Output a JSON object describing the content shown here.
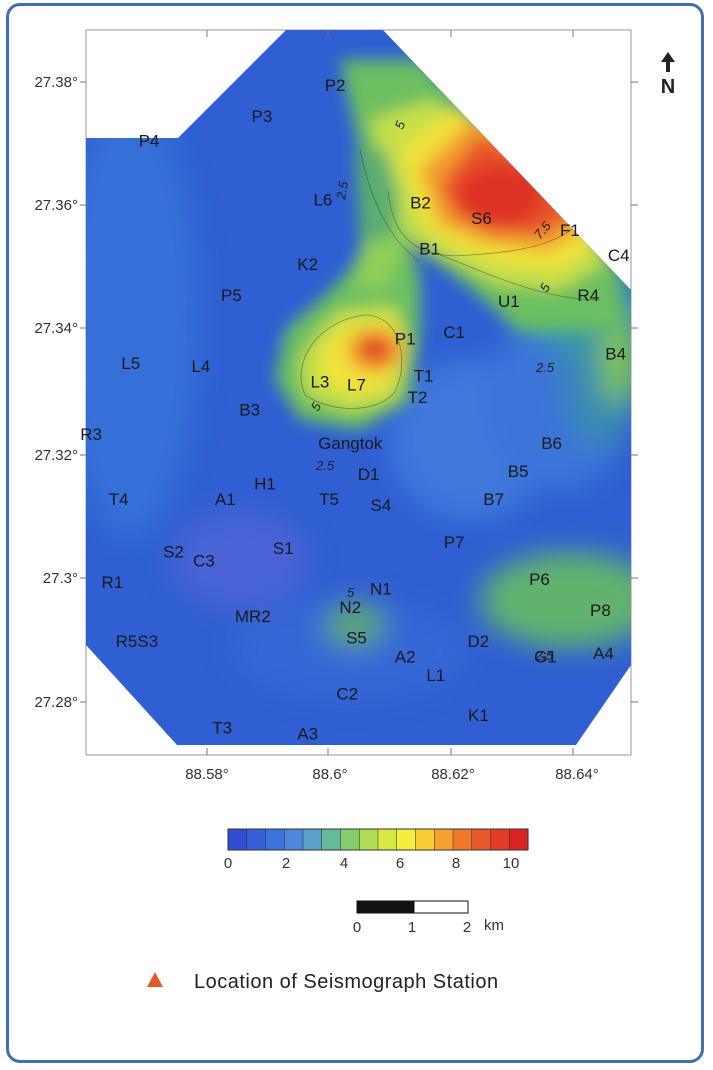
{
  "axes": {
    "x_ticks": [
      "88.58°",
      "88.6°",
      "88.62°",
      "88.64°"
    ],
    "y_ticks": [
      "27.38°",
      "27.36°",
      "27.34°",
      "27.32°",
      "27.3°",
      "27.28°"
    ]
  },
  "north_label": "N",
  "stations": [
    {
      "label": "P2",
      "lon": 88.601,
      "lat": 27.3795
    },
    {
      "label": "P3",
      "lon": 88.589,
      "lat": 27.3745
    },
    {
      "label": "P4",
      "lon": 88.5705,
      "lat": 27.3705
    },
    {
      "label": "L6",
      "lon": 88.599,
      "lat": 27.361
    },
    {
      "label": "B2",
      "lon": 88.615,
      "lat": 27.3605
    },
    {
      "label": "S6",
      "lon": 88.625,
      "lat": 27.358
    },
    {
      "label": "F1",
      "lon": 88.6395,
      "lat": 27.356
    },
    {
      "label": "C4",
      "lon": 88.6475,
      "lat": 27.352
    },
    {
      "label": "B1",
      "lon": 88.6165,
      "lat": 27.353
    },
    {
      "label": "K2",
      "lon": 88.5965,
      "lat": 27.3505
    },
    {
      "label": "U1",
      "lon": 88.6295,
      "lat": 27.3445
    },
    {
      "label": "R4",
      "lon": 88.6425,
      "lat": 27.3455
    },
    {
      "label": "P5",
      "lon": 88.584,
      "lat": 27.3455
    },
    {
      "label": "P1",
      "lon": 88.6125,
      "lat": 27.3385
    },
    {
      "label": "C1",
      "lon": 88.6205,
      "lat": 27.3395
    },
    {
      "label": "L5",
      "lon": 88.5675,
      "lat": 27.3345
    },
    {
      "label": "L4",
      "lon": 88.579,
      "lat": 27.334
    },
    {
      "label": "B4",
      "lon": 88.647,
      "lat": 27.336
    },
    {
      "label": "L3",
      "lon": 88.5985,
      "lat": 27.3315
    },
    {
      "label": "L7",
      "lon": 88.6045,
      "lat": 27.331
    },
    {
      "label": "T1",
      "lon": 88.6155,
      "lat": 27.3325
    },
    {
      "label": "T2",
      "lon": 88.6145,
      "lat": 27.329
    },
    {
      "label": "B3",
      "lon": 88.587,
      "lat": 27.327
    },
    {
      "label": "R3",
      "lon": 88.561,
      "lat": 27.323
    },
    {
      "label": "Gangtok",
      "lon": 88.6035,
      "lat": 27.3215
    },
    {
      "label": "B6",
      "lon": 88.6365,
      "lat": 27.3215
    },
    {
      "label": "D1",
      "lon": 88.6065,
      "lat": 27.3165
    },
    {
      "label": "B5",
      "lon": 88.631,
      "lat": 27.317
    },
    {
      "label": "H1",
      "lon": 88.5895,
      "lat": 27.315
    },
    {
      "label": "A1",
      "lon": 88.583,
      "lat": 27.3125
    },
    {
      "label": "T4",
      "lon": 88.5655,
      "lat": 27.3125
    },
    {
      "label": "T5",
      "lon": 88.6,
      "lat": 27.3125
    },
    {
      "label": "S4",
      "lon": 88.6085,
      "lat": 27.3115
    },
    {
      "label": "B7",
      "lon": 88.627,
      "lat": 27.3125
    },
    {
      "label": "P7",
      "lon": 88.6205,
      "lat": 27.3055
    },
    {
      "label": "S2",
      "lon": 88.5745,
      "lat": 27.304
    },
    {
      "label": "S1",
      "lon": 88.5925,
      "lat": 27.3045
    },
    {
      "label": "C3",
      "lon": 88.5795,
      "lat": 27.3025
    },
    {
      "label": "R1",
      "lon": 88.5645,
      "lat": 27.299
    },
    {
      "label": "P6",
      "lon": 88.6345,
      "lat": 27.2995
    },
    {
      "label": "N1",
      "lon": 88.6085,
      "lat": 27.298
    },
    {
      "label": "P8",
      "lon": 88.6445,
      "lat": 27.2945
    },
    {
      "label": "N2",
      "lon": 88.6035,
      "lat": 27.295
    },
    {
      "label": "MR2",
      "lon": 88.5875,
      "lat": 27.2935
    },
    {
      "label": "S5",
      "lon": 88.6045,
      "lat": 27.29
    },
    {
      "label": "R5S3",
      "lon": 88.5685,
      "lat": 27.2895
    },
    {
      "label": "D2",
      "lon": 88.6245,
      "lat": 27.2895
    },
    {
      "label": "A2",
      "lon": 88.6125,
      "lat": 27.287
    },
    {
      "label": "G1",
      "lon": 88.6355,
      "lat": 27.287
    },
    {
      "label": "A4",
      "lon": 88.645,
      "lat": 27.2875
    },
    {
      "label": "L1",
      "lon": 88.6175,
      "lat": 27.284
    },
    {
      "label": "C2",
      "lon": 88.603,
      "lat": 27.281
    },
    {
      "label": "K1",
      "lon": 88.6245,
      "lat": 27.2775
    },
    {
      "label": "T3",
      "lon": 88.5825,
      "lat": 27.2755
    },
    {
      "label": "A3",
      "lon": 88.5965,
      "lat": 27.2745
    }
  ],
  "contour_labels": [
    "5",
    "2.5",
    "7.5",
    "5",
    "2.5",
    "5",
    "2.5",
    "5",
    "2.5"
  ],
  "colorbar": {
    "ticks": [
      "0",
      "2",
      "4",
      "6",
      "8",
      "10"
    ],
    "min": 0,
    "max": 10,
    "colors": [
      "#2f4fd0",
      "#3560d8",
      "#3c72dc",
      "#4e86d8",
      "#5aa0c8",
      "#68bb9a",
      "#86cc6c",
      "#aedd54",
      "#d7ea44",
      "#f4ee3c",
      "#f7cc34",
      "#f4a22e",
      "#ef7a2c",
      "#e9582a",
      "#e23b28",
      "#da2424"
    ]
  },
  "scalebar": {
    "ticks": [
      "0",
      "1",
      "2"
    ],
    "unit": "km"
  },
  "legend": {
    "label": "Location of Seismograph Station",
    "marker_color": "#e05a2b"
  }
}
